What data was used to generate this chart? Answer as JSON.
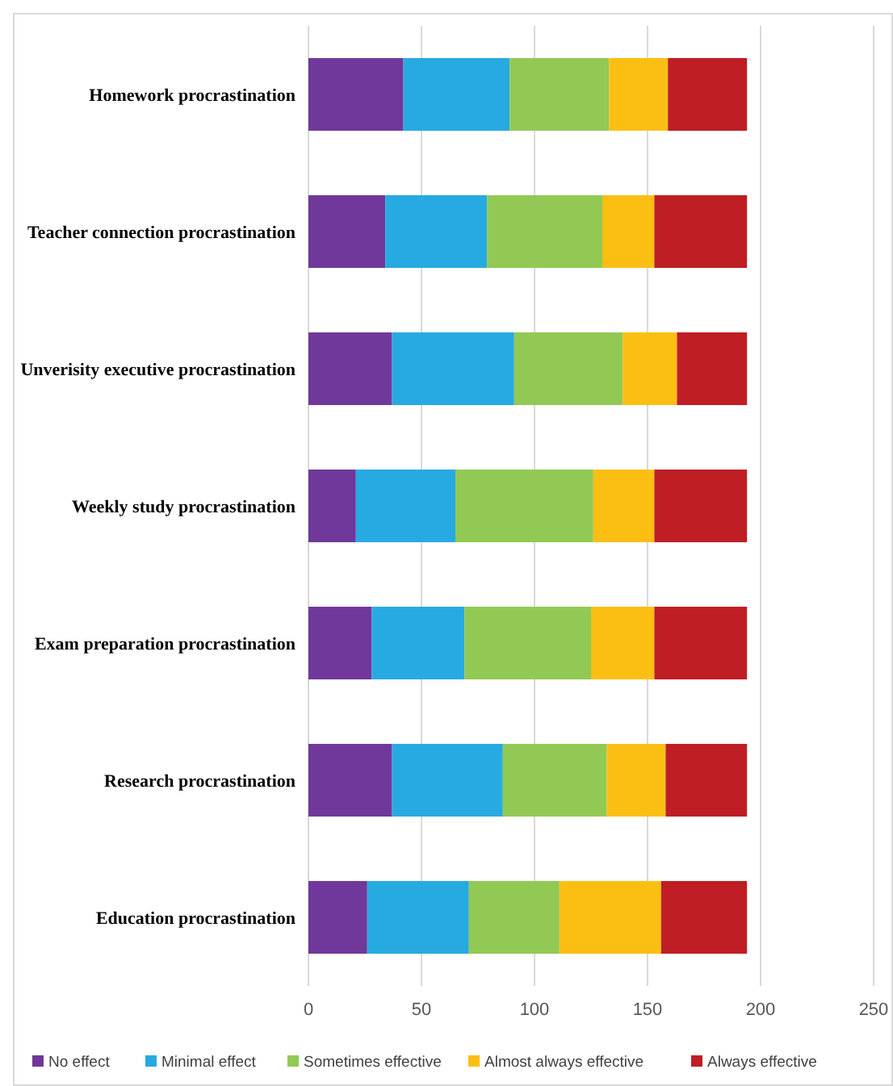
{
  "chart_data": {
    "type": "bar",
    "orientation": "horizontal",
    "stacked": true,
    "categories": [
      "Homework procrastination",
      "Teacher connection procrastination",
      "Unverisity executive procrastination",
      "Weekly study procrastination",
      "Exam preparation procrastination",
      "Research procrastination",
      "Education procrastination"
    ],
    "series": [
      {
        "name": "No effect",
        "color": "#70389a",
        "values": [
          42,
          34,
          37,
          21,
          28,
          37,
          26
        ]
      },
      {
        "name": "Minimal effect",
        "color": "#27aae1",
        "values": [
          47,
          45,
          54,
          44,
          41,
          49,
          45
        ]
      },
      {
        "name": "Sometimes effective",
        "color": "#92c954",
        "values": [
          44,
          51,
          48,
          61,
          56,
          46,
          40
        ]
      },
      {
        "name": "Almost always effective",
        "color": "#fbbf14",
        "values": [
          26,
          23,
          24,
          27,
          28,
          26,
          45
        ]
      },
      {
        "name": "Always effective",
        "color": "#be1e24",
        "values": [
          35,
          41,
          31,
          41,
          41,
          36,
          38
        ]
      }
    ],
    "xlim": [
      0,
      250
    ],
    "xticks": [
      0,
      50,
      100,
      150,
      200,
      250
    ],
    "grid": "x",
    "legend": "bottom"
  }
}
